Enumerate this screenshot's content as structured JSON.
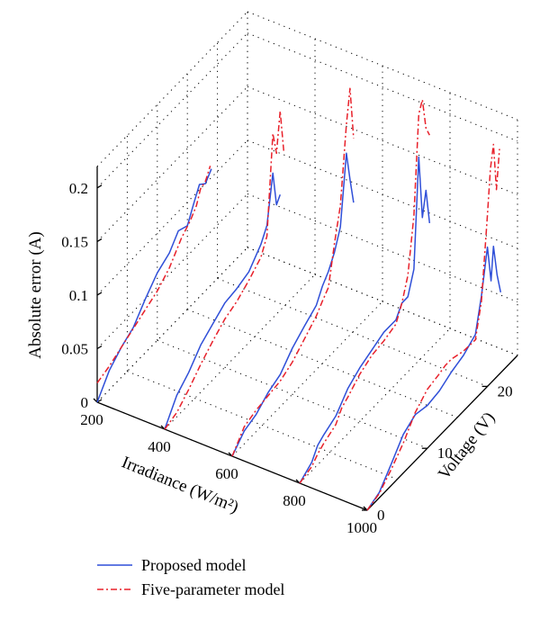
{
  "colors": {
    "proposed": "#2f4fd8",
    "five_parameter": "#e8202a",
    "axis": "#000000"
  },
  "chart_data": {
    "type": "line3d",
    "xlabel": "Irradiance (W/m²)",
    "ylabel": "Voltage (V)",
    "zlabel": "Absolute error (A)",
    "xlim": [
      200,
      1000
    ],
    "ylim": [
      0,
      25
    ],
    "zlim": [
      0,
      0.22
    ],
    "xticks": [
      "200",
      "400",
      "600",
      "800",
      "1000"
    ],
    "yticks": [
      "0",
      "10",
      "20"
    ],
    "zticks": [
      "0",
      "0.05",
      "0.1",
      "0.15",
      "0.2"
    ],
    "grid": true,
    "legend_position": "bottom",
    "series": [
      {
        "name": "Proposed model",
        "style": "solid",
        "lines": [
          {
            "irradiance": 200,
            "voltage": [
              0,
              2,
              4,
              6,
              8,
              10,
              12,
              13.5,
              15,
              16,
              17,
              18,
              19
            ],
            "error": [
              0.0,
              0.018,
              0.028,
              0.035,
              0.05,
              0.063,
              0.07,
              0.082,
              0.078,
              0.092,
              0.105,
              0.1,
              0.108
            ]
          },
          {
            "irradiance": 400,
            "voltage": [
              0,
              2,
              4,
              6,
              8,
              10,
              12,
              14,
              16,
              17,
              18,
              18.6,
              19.2
            ],
            "error": [
              0.0,
              0.02,
              0.03,
              0.044,
              0.052,
              0.06,
              0.062,
              0.066,
              0.08,
              0.092,
              0.135,
              0.102,
              0.108
            ]
          },
          {
            "irradiance": 600,
            "voltage": [
              0,
              2,
              4,
              6,
              8,
              10,
              12,
              14,
              15,
              16,
              17,
              18,
              19,
              19.6,
              20.2
            ],
            "error": [
              0.0,
              0.012,
              0.016,
              0.025,
              0.03,
              0.043,
              0.052,
              0.06,
              0.072,
              0.08,
              0.092,
              0.11,
              0.173,
              0.145,
              0.12
            ]
          },
          {
            "irradiance": 800,
            "voltage": [
              0,
              2,
              3,
              4,
              6,
              7,
              8,
              10,
              12,
              14,
              16,
              17,
              18,
              19,
              19.8,
              20.4,
              21,
              21.6
            ],
            "error": [
              0.0,
              0.008,
              0.018,
              0.022,
              0.028,
              0.035,
              0.042,
              0.05,
              0.055,
              0.06,
              0.06,
              0.07,
              0.07,
              0.09,
              0.19,
              0.13,
              0.152,
              0.118
            ]
          },
          {
            "irradiance": 1000,
            "voltage": [
              0,
              2,
              4,
              6,
              8,
              10,
              12,
              14,
              16,
              18,
              19,
              20,
              20.6,
              21,
              21.6,
              22.2
            ],
            "error": [
              0.0,
              0.005,
              0.02,
              0.036,
              0.043,
              0.04,
              0.042,
              0.048,
              0.052,
              0.06,
              0.09,
              0.13,
              0.095,
              0.125,
              0.095,
              0.075
            ]
          }
        ]
      },
      {
        "name": "Five-parameter model",
        "style": "dash-dot",
        "lines": [
          {
            "irradiance": 200,
            "voltage": [
              0,
              2,
              4,
              6,
              8,
              10,
              12,
              14,
              15.5,
              16.5,
              17.2,
              18,
              18.8
            ],
            "error": [
              0.018,
              0.022,
              0.028,
              0.034,
              0.04,
              0.046,
              0.056,
              0.072,
              0.08,
              0.088,
              0.1,
              0.102,
              0.112
            ]
          },
          {
            "irradiance": 400,
            "voltage": [
              0,
              2,
              4,
              6,
              8,
              10,
              12,
              14,
              16,
              17,
              18,
              18.6,
              19.2,
              19.8
            ],
            "error": [
              0.0,
              0.004,
              0.014,
              0.026,
              0.036,
              0.045,
              0.05,
              0.058,
              0.068,
              0.082,
              0.172,
              0.15,
              0.186,
              0.145
            ]
          },
          {
            "irradiance": 600,
            "voltage": [
              0,
              2,
              4,
              6,
              8,
              10,
              12,
              14,
              15,
              16,
              17,
              18,
              19,
              19.6,
              20.2
            ],
            "error": [
              0.0,
              0.016,
              0.02,
              0.022,
              0.024,
              0.03,
              0.04,
              0.05,
              0.058,
              0.065,
              0.1,
              0.13,
              0.2,
              0.23,
              0.18
            ]
          },
          {
            "irradiance": 800,
            "voltage": [
              0,
              2,
              3,
              4,
              6,
              7,
              8,
              10,
              12,
              14,
              16,
              17,
              18,
              19,
              19.8,
              20.4,
              21,
              21.6
            ],
            "error": [
              0.0,
              0.004,
              0.01,
              0.014,
              0.02,
              0.03,
              0.034,
              0.044,
              0.05,
              0.052,
              0.056,
              0.07,
              0.09,
              0.14,
              0.23,
              0.24,
              0.21,
              0.2
            ]
          },
          {
            "irradiance": 1000,
            "voltage": [
              0,
              2,
              4,
              6,
              8,
              10,
              12,
              13,
              14,
              16,
              18,
              19,
              20,
              20.5,
              21,
              21.5,
              22
            ],
            "error": [
              0.0,
              0.004,
              0.015,
              0.028,
              0.045,
              0.055,
              0.058,
              0.06,
              0.06,
              0.056,
              0.055,
              0.085,
              0.16,
              0.2,
              0.22,
              0.175,
              0.21
            ]
          }
        ]
      }
    ]
  }
}
